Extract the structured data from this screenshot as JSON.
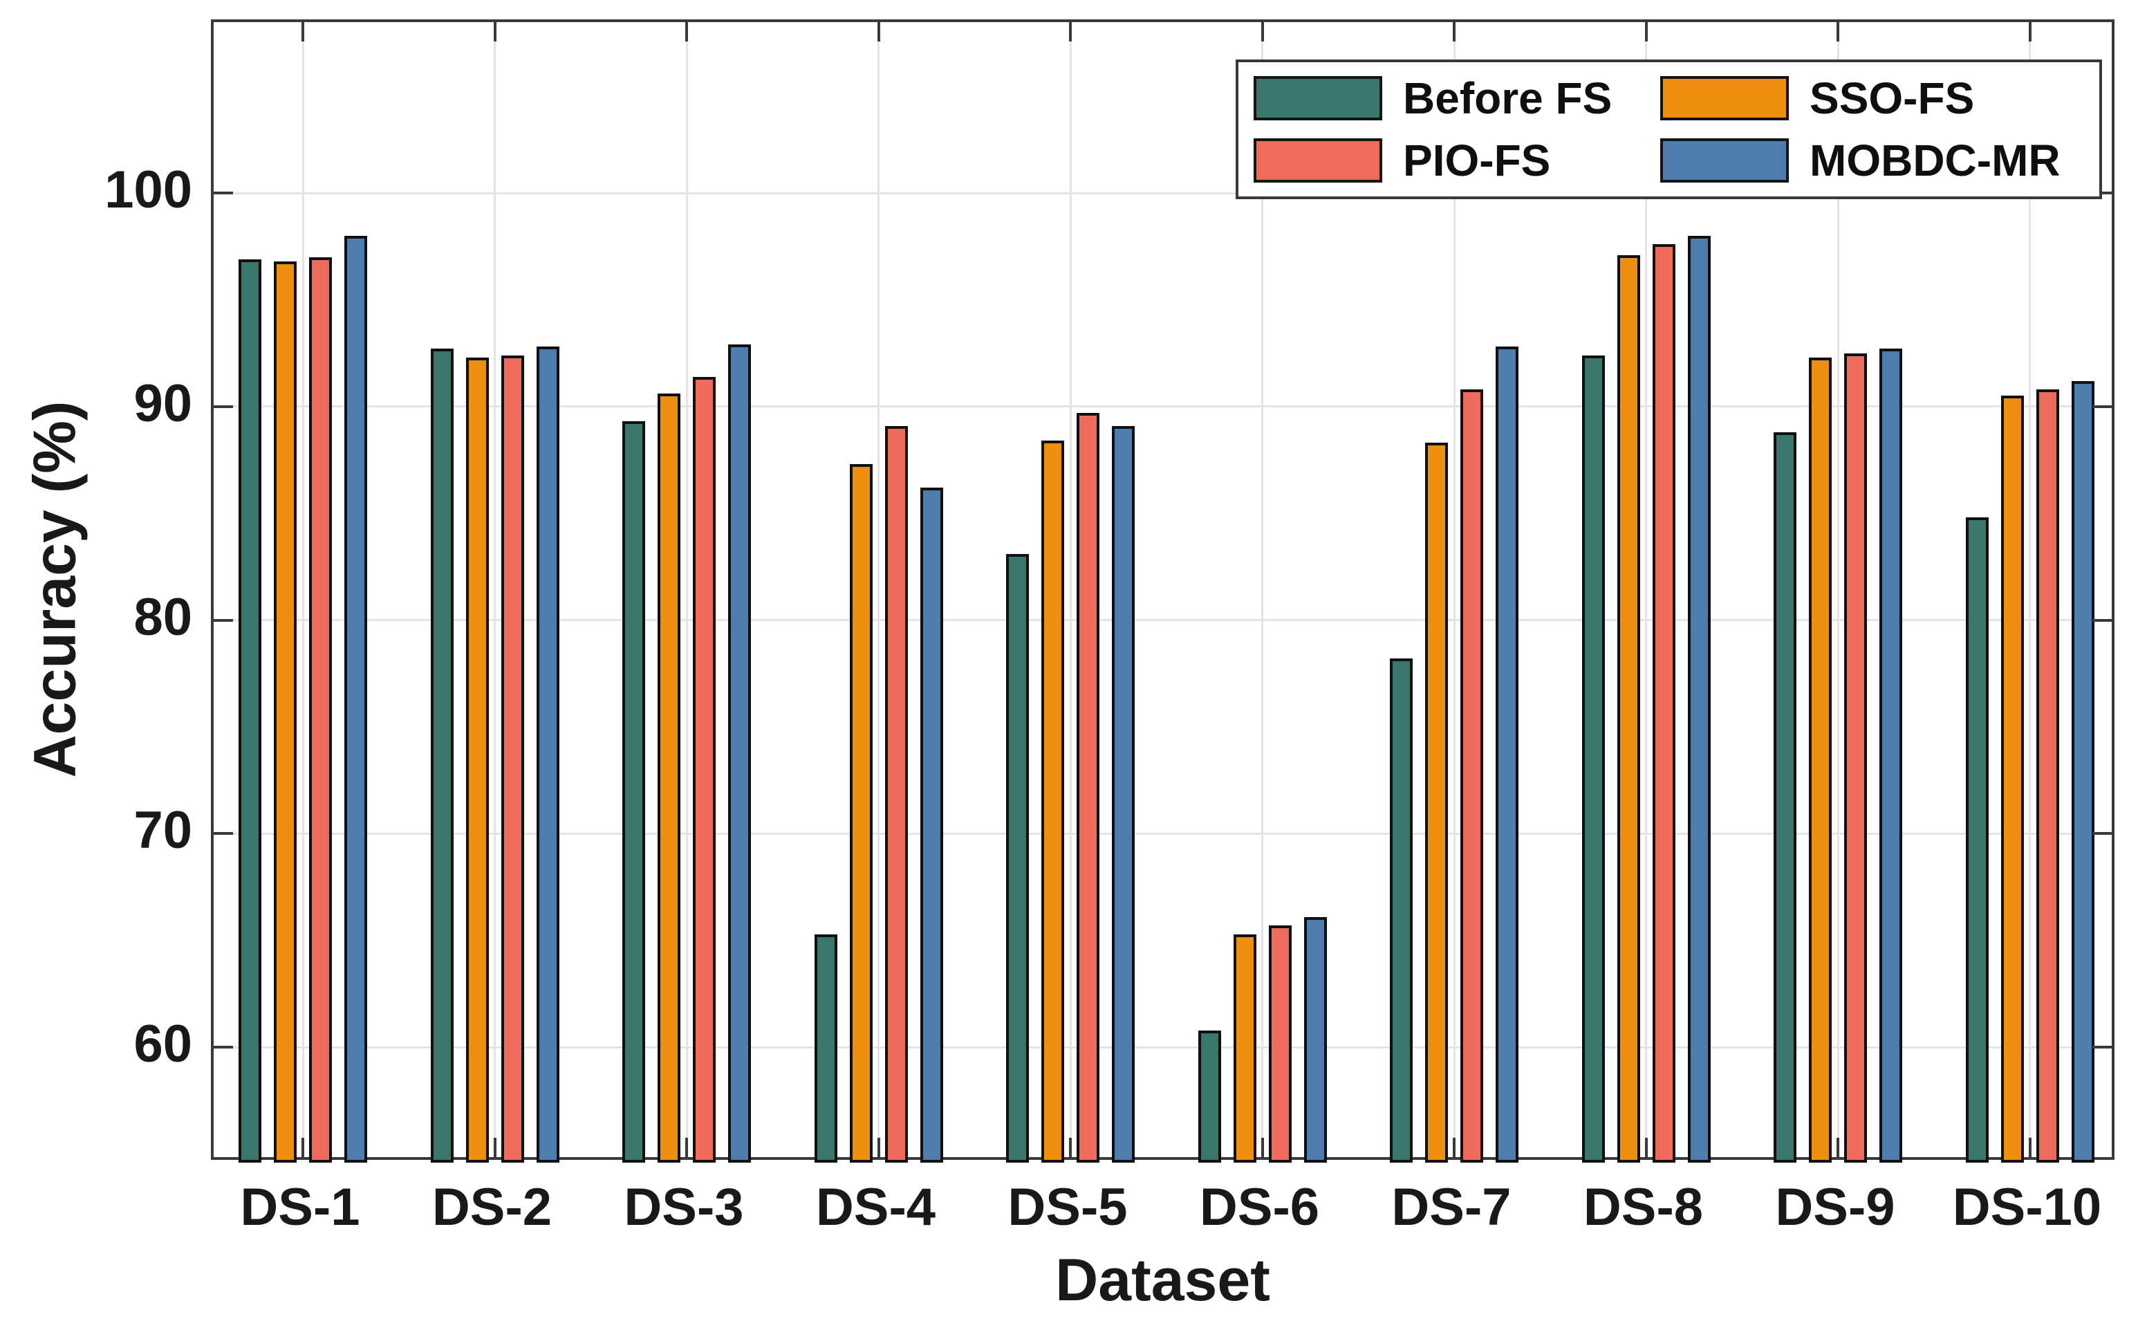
{
  "chart_data": {
    "type": "bar",
    "title": "",
    "xlabel": "Dataset",
    "ylabel": "Accuracy (%)",
    "categories": [
      "DS-1",
      "DS-2",
      "DS-3",
      "DS-4",
      "DS-5",
      "DS-6",
      "DS-7",
      "DS-8",
      "DS-9",
      "DS-10"
    ],
    "series": [
      {
        "name": "Before FS",
        "color": "#3A766C",
        "values": [
          96.9,
          92.7,
          89.3,
          65.3,
          83.1,
          60.8,
          78.2,
          92.4,
          88.8,
          84.8
        ]
      },
      {
        "name": "SSO-FS",
        "color": "#EE8F10",
        "values": [
          96.8,
          92.3,
          90.6,
          87.3,
          88.4,
          65.3,
          88.3,
          97.1,
          92.3,
          90.5
        ]
      },
      {
        "name": "PIO-FS",
        "color": "#EE6A5A",
        "values": [
          97.0,
          92.4,
          91.4,
          89.1,
          89.7,
          65.7,
          90.8,
          97.6,
          92.5,
          90.8
        ]
      },
      {
        "name": "MOBDC-MR",
        "color": "#4E7CAD",
        "values": [
          98.0,
          92.8,
          92.9,
          86.2,
          89.1,
          66.1,
          92.8,
          98.0,
          92.7,
          91.2
        ]
      }
    ],
    "ylim": [
      54.6,
      108.0
    ],
    "yticks": [
      60,
      70,
      80,
      90,
      100
    ],
    "grid": true,
    "legend_position": "top-right",
    "legend_columns": 2,
    "bar_edge_color": "#101010",
    "grid_color": "#e4e4e4",
    "axis_color": "#3a3a3a",
    "text_color": "#191919"
  }
}
